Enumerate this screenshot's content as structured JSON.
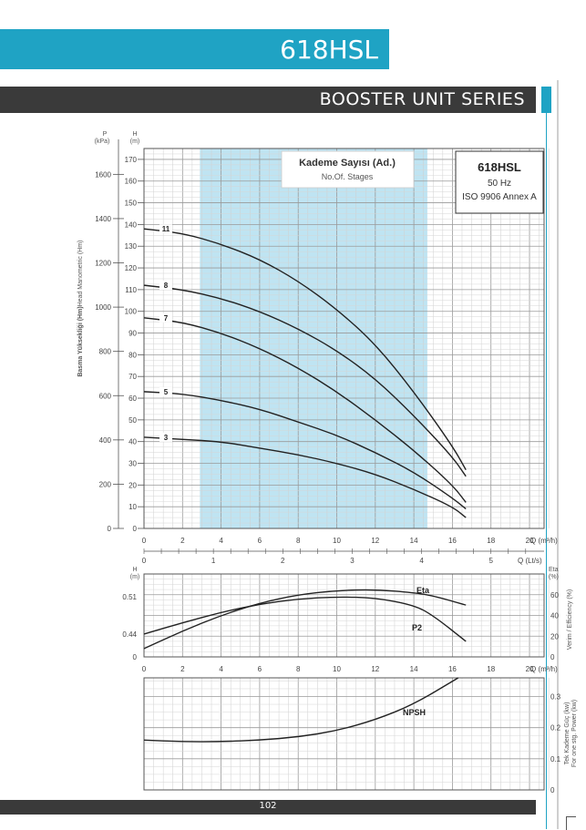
{
  "header": {
    "title": "618HSL",
    "series": "BOOSTER UNIT SERIES"
  },
  "footer": {
    "page_number": "102"
  },
  "colors": {
    "accent": "#1fa3c4",
    "dark": "#3a3a3a",
    "band": "#bfe4f2"
  },
  "chart_data": [
    {
      "type": "line",
      "title": "618HSL",
      "subtitle": [
        "50 Hz",
        "ISO 9906 Annex A"
      ],
      "legend_box": {
        "title": "Kademe Sayısı (Ad.)",
        "subtitle": "No.Of. Stages"
      },
      "x_unit_top": "Q (m³/h)",
      "x_unit_bottom": "Q (Lt/s)",
      "y_left_labels": [
        "Basma Yüksekliği (Hm)",
        "Head Manometric (Hm)"
      ],
      "y_axis_p_label": [
        "P",
        "(kPa)"
      ],
      "y_axis_h_label": [
        "H",
        "(m)"
      ],
      "xlim": [
        0,
        20
      ],
      "ylim": [
        0,
        175
      ],
      "x_ticks": [
        0,
        2,
        4,
        6,
        8,
        10,
        12,
        14,
        16,
        18,
        20
      ],
      "y_ticks": [
        0,
        10,
        20,
        30,
        40,
        50,
        60,
        70,
        80,
        90,
        100,
        110,
        120,
        130,
        140,
        150,
        160,
        170
      ],
      "p_ticks": [
        0,
        200,
        400,
        600,
        800,
        1000,
        1200,
        1400,
        1600
      ],
      "lps_ticks": [
        0,
        1,
        2,
        3,
        4,
        5
      ],
      "recommended_range_q": [
        2.9,
        14.7
      ],
      "series": [
        {
          "name": "11",
          "x": [
            0,
            2,
            4,
            6,
            8,
            10,
            12,
            14,
            16,
            16.7
          ],
          "values": [
            138,
            136,
            131,
            124,
            114,
            101,
            85,
            63,
            38,
            27
          ]
        },
        {
          "name": "8",
          "x": [
            0,
            2,
            4,
            6,
            8,
            10,
            12,
            14,
            16,
            16.7
          ],
          "values": [
            112,
            110,
            106,
            100,
            92,
            82,
            69,
            52,
            33,
            24
          ]
        },
        {
          "name": "7",
          "x": [
            0,
            2,
            4,
            6,
            8,
            10,
            12,
            14,
            16,
            16.7
          ],
          "values": [
            97,
            95,
            90,
            83,
            74,
            63,
            50,
            36,
            20,
            12
          ]
        },
        {
          "name": "5",
          "x": [
            0,
            2,
            4,
            6,
            8,
            10,
            12,
            14,
            16,
            16.7
          ],
          "values": [
            63,
            62,
            59,
            55,
            49,
            43,
            35,
            26,
            14,
            9
          ]
        },
        {
          "name": "3",
          "x": [
            0,
            2,
            4,
            6,
            8,
            10,
            12,
            14,
            16,
            16.7
          ],
          "values": [
            42,
            41,
            40,
            37,
            34,
            30,
            25,
            18,
            10,
            5
          ]
        }
      ]
    },
    {
      "type": "line",
      "y_axis_h_label": [
        "H",
        "(m)"
      ],
      "y_axis_eta_label": [
        "Eta",
        "(%)"
      ],
      "y_right_label": "Verim / Efficiency (%)",
      "x_unit": "Q (m³/h)",
      "xlim": [
        0,
        20
      ],
      "x_ticks": [
        0,
        2,
        4,
        6,
        8,
        10,
        12,
        14,
        16,
        18,
        20
      ],
      "h_ticks": [
        0,
        0.44,
        0.51
      ],
      "eta_ticks": [
        0,
        20,
        40,
        60,
        80
      ],
      "ylim": [
        0,
        80
      ],
      "series": [
        {
          "name": "Eta",
          "x": [
            0,
            2,
            4,
            6,
            8,
            10,
            12,
            14,
            15,
            16.7
          ],
          "values": [
            8,
            25,
            40,
            52,
            60,
            64,
            65,
            62,
            59,
            50
          ]
        },
        {
          "name": "P2",
          "x": [
            0,
            2,
            4,
            6,
            8,
            10,
            12,
            14,
            15,
            16.7
          ],
          "values": [
            22,
            33,
            43,
            51,
            56,
            58,
            57,
            50,
            40,
            15
          ]
        }
      ]
    },
    {
      "type": "line",
      "y_right_label": [
        "Tek Kademe Güç (kw)",
        "For one stg. Power (kw)"
      ],
      "p_ticks": [
        0,
        0.1,
        0.2,
        0.3
      ],
      "xlim": [
        0,
        20
      ],
      "ylim": [
        0,
        0.36
      ],
      "series": [
        {
          "name": "NPSH",
          "x": [
            0,
            2,
            4,
            6,
            8,
            10,
            12,
            14,
            16.3
          ],
          "values": [
            0.16,
            0.155,
            0.155,
            0.16,
            0.17,
            0.19,
            0.225,
            0.275,
            0.36
          ]
        }
      ]
    }
  ]
}
